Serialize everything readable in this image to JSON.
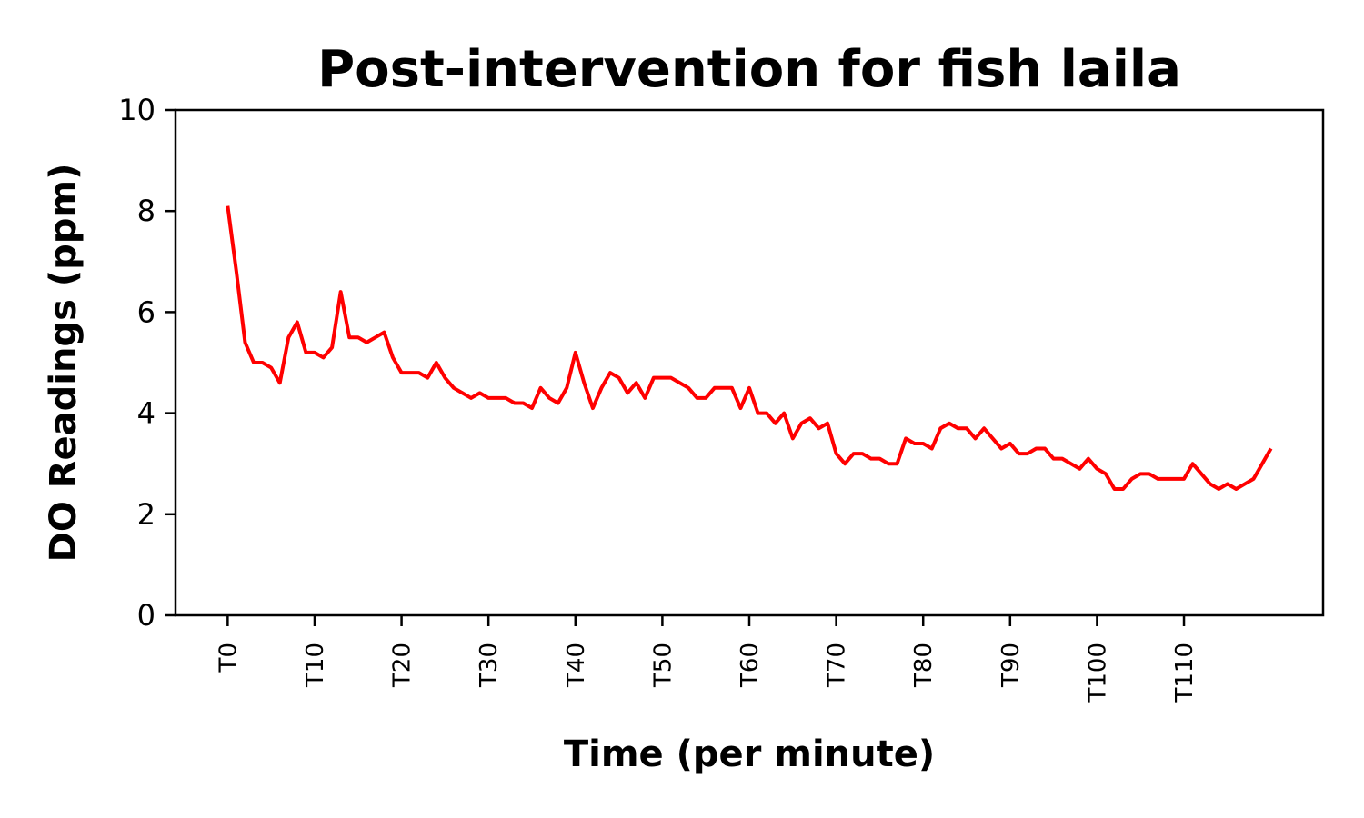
{
  "chart_data": {
    "type": "line",
    "title": "Post-intervention for fish laila",
    "xlabel": "Time (per minute)",
    "ylabel": "DO Readings (ppm)",
    "ylim": [
      0,
      10
    ],
    "xlim": [
      -6,
      126
    ],
    "yticks": [
      0,
      2,
      4,
      6,
      8,
      10
    ],
    "xtick_positions": [
      0,
      10,
      20,
      30,
      40,
      50,
      60,
      70,
      80,
      90,
      100,
      110
    ],
    "xtick_labels": [
      "T0",
      "T10",
      "T20",
      "T30",
      "T40",
      "T50",
      "T60",
      "T70",
      "T80",
      "T90",
      "T100",
      "T110"
    ],
    "grid": false,
    "legend": "none",
    "series": [
      {
        "color": "#ff0000",
        "values": [
          8.1,
          6.8,
          5.4,
          5.0,
          5.0,
          4.9,
          4.6,
          5.5,
          5.8,
          5.2,
          5.2,
          5.1,
          5.3,
          6.4,
          5.5,
          5.5,
          5.4,
          5.5,
          5.6,
          5.1,
          4.8,
          4.8,
          4.8,
          4.7,
          5.0,
          4.7,
          4.5,
          4.4,
          4.3,
          4.4,
          4.3,
          4.3,
          4.3,
          4.2,
          4.2,
          4.1,
          4.5,
          4.3,
          4.2,
          4.5,
          5.2,
          4.6,
          4.1,
          4.5,
          4.8,
          4.7,
          4.4,
          4.6,
          4.3,
          4.7,
          4.7,
          4.7,
          4.6,
          4.5,
          4.3,
          4.3,
          4.5,
          4.5,
          4.5,
          4.1,
          4.5,
          4.0,
          4.0,
          3.8,
          4.0,
          3.5,
          3.8,
          3.9,
          3.7,
          3.8,
          3.2,
          3.0,
          3.2,
          3.2,
          3.1,
          3.1,
          3.0,
          3.0,
          3.5,
          3.4,
          3.4,
          3.3,
          3.7,
          3.8,
          3.7,
          3.7,
          3.5,
          3.7,
          3.5,
          3.3,
          3.4,
          3.2,
          3.2,
          3.3,
          3.3,
          3.1,
          3.1,
          3.0,
          2.9,
          3.1,
          2.9,
          2.8,
          2.5,
          2.5,
          2.7,
          2.8,
          2.8,
          2.7,
          2.7,
          2.7,
          2.7,
          3.0,
          2.8,
          2.6,
          2.5,
          2.6,
          2.5,
          2.6,
          2.7,
          3.0,
          3.3
        ]
      }
    ]
  }
}
